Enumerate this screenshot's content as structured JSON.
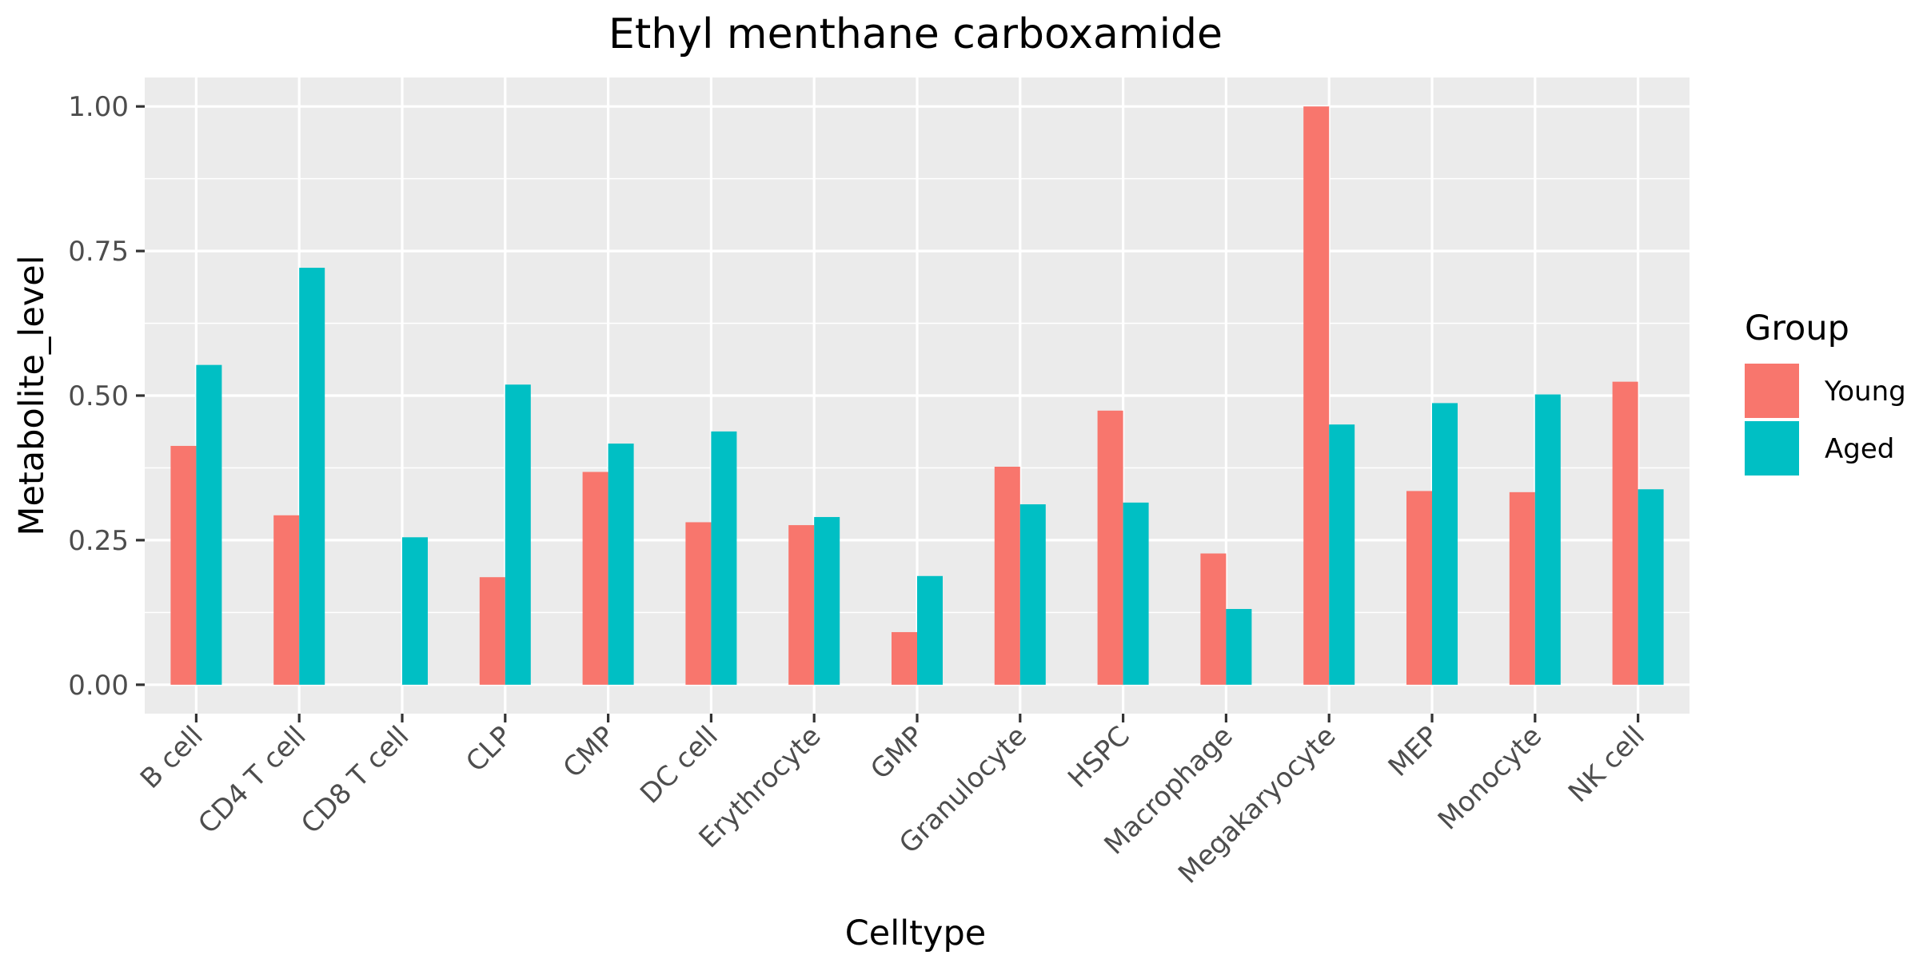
{
  "chart_data": {
    "type": "bar",
    "title": "Ethyl menthane carboxamide",
    "xlabel": "Celltype",
    "ylabel": "Metabolite_level",
    "categories": [
      "B cell",
      "CD4 T cell",
      "CD8 T cell",
      "CLP",
      "CMP",
      "DC cell",
      "Erythrocyte",
      "GMP",
      "Granulocyte",
      "HSPC",
      "Macrophage",
      "Megakaryocyte",
      "MEP",
      "Monocyte",
      "NK cell"
    ],
    "series": [
      {
        "name": "Young",
        "color": "#F8766D",
        "values": [
          0.413,
          0.293,
          null,
          0.186,
          0.368,
          0.281,
          0.276,
          0.091,
          0.377,
          0.474,
          0.227,
          1.0,
          0.335,
          0.333,
          0.524
        ]
      },
      {
        "name": "Aged",
        "color": "#00BFC4",
        "values": [
          0.553,
          0.721,
          0.255,
          0.519,
          0.417,
          0.438,
          0.29,
          0.188,
          0.312,
          0.315,
          0.131,
          0.45,
          0.487,
          0.502,
          0.338
        ]
      }
    ],
    "yticks": [
      0.0,
      0.25,
      0.5,
      0.75,
      1.0
    ],
    "ytick_labels": [
      "0.00",
      "0.25",
      "0.50",
      "0.75",
      "1.00"
    ],
    "ylim": [
      -0.05,
      1.05
    ],
    "grid": true,
    "legend": {
      "title": "Group",
      "position": "right"
    },
    "panel_background": "#EBEBEB",
    "grid_color": "#FFFFFF"
  }
}
